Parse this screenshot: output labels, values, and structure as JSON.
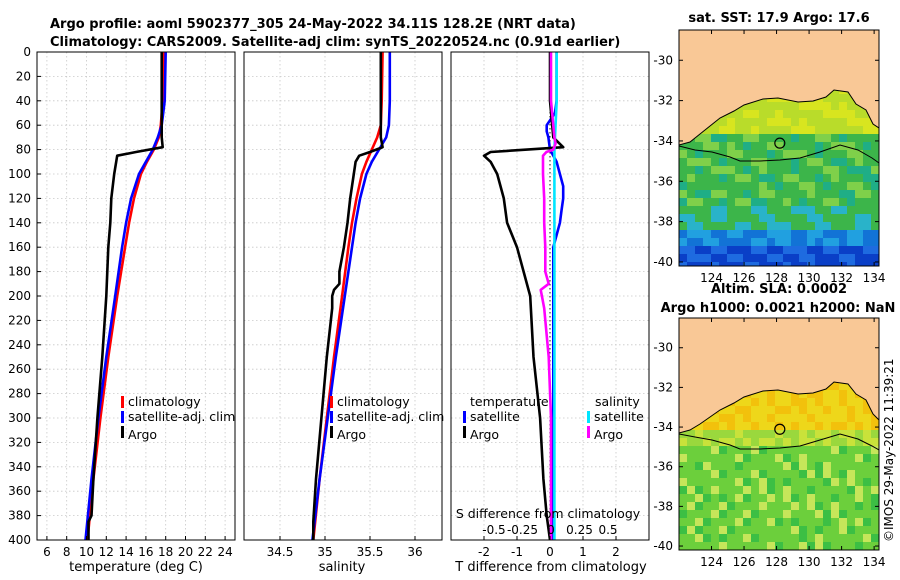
{
  "title_line1": "Argo profile: aoml 5902377_305 24-May-2022 34.11S 128.2E (NRT data)",
  "title_line2": "Climatology: CARS2009. Satellite-adj clim: synTS_20220524.nc (0.91d earlier)",
  "timestamp": "©IMOS 29-May-2022 11:39:21",
  "colors": {
    "climatology": "#ff0000",
    "satellite": "#0000ff",
    "argo": "#000000",
    "salinity_satellite": "#00e5ff",
    "salinity_argo": "#ff00ff",
    "land": "#f9c896"
  },
  "chart_data": [
    {
      "id": "temperature",
      "type": "line",
      "xlabel": "temperature (deg C)",
      "ylabel": "",
      "xlim": [
        5,
        25
      ],
      "ylim": [
        400,
        0
      ],
      "xticks": [
        6,
        8,
        10,
        12,
        14,
        16,
        18,
        20,
        22,
        24
      ],
      "yticks": [
        0,
        20,
        40,
        60,
        80,
        100,
        120,
        140,
        160,
        180,
        200,
        220,
        240,
        260,
        280,
        300,
        320,
        340,
        360,
        380,
        400
      ],
      "legend": [
        "climatology",
        "satellite-adj. clim",
        "Argo"
      ],
      "series": [
        {
          "name": "climatology",
          "depth": [
            0,
            40,
            60,
            70,
            80,
            90,
            100,
            120,
            140,
            160,
            200,
            250,
            300,
            350,
            400
          ],
          "values": [
            17.8,
            17.7,
            17.5,
            17.3,
            16.8,
            16.1,
            15.5,
            14.8,
            14.3,
            13.9,
            13.1,
            12.2,
            11.4,
            10.7,
            10.1
          ]
        },
        {
          "name": "satellite-adj. clim",
          "depth": [
            0,
            40,
            60,
            70,
            80,
            90,
            100,
            120,
            140,
            160,
            200,
            250,
            300,
            350,
            400
          ],
          "values": [
            18.0,
            17.9,
            17.6,
            17.2,
            16.7,
            16.0,
            15.3,
            14.5,
            14.0,
            13.6,
            12.9,
            12.0,
            11.2,
            10.5,
            9.9
          ]
        },
        {
          "name": "Argo",
          "depth": [
            0,
            40,
            70,
            78,
            82,
            85,
            90,
            100,
            120,
            140,
            160,
            200,
            250,
            300,
            350,
            380,
            385,
            400
          ],
          "values": [
            17.6,
            17.6,
            17.6,
            17.7,
            15.0,
            13.1,
            13.0,
            12.8,
            12.5,
            12.4,
            12.2,
            12.0,
            11.6,
            11.1,
            10.7,
            10.5,
            10.2,
            10.2
          ]
        }
      ]
    },
    {
      "id": "salinity",
      "type": "line",
      "xlabel": "salinity",
      "ylabel": "",
      "xlim": [
        34.1,
        36.3
      ],
      "ylim": [
        400,
        0
      ],
      "xticks": [
        34.5,
        35,
        35.5,
        36
      ],
      "xticklabels": [
        "34.5",
        "35",
        "35.5",
        "36"
      ],
      "legend": [
        "climatology",
        "satellite-adj. clim",
        "Argo"
      ],
      "series": [
        {
          "name": "climatology",
          "depth": [
            0,
            40,
            60,
            70,
            80,
            90,
            100,
            120,
            140,
            160,
            200,
            250,
            300,
            350,
            400
          ],
          "values": [
            35.64,
            35.63,
            35.62,
            35.58,
            35.52,
            35.46,
            35.41,
            35.35,
            35.3,
            35.26,
            35.19,
            35.1,
            35.02,
            34.94,
            34.87
          ]
        },
        {
          "name": "satellite-adj. clim",
          "depth": [
            0,
            40,
            60,
            70,
            80,
            90,
            100,
            120,
            140,
            160,
            200,
            250,
            300,
            350,
            400
          ],
          "values": [
            35.72,
            35.72,
            35.71,
            35.68,
            35.6,
            35.52,
            35.46,
            35.39,
            35.34,
            35.3,
            35.22,
            35.12,
            35.03,
            34.94,
            34.86
          ]
        },
        {
          "name": "Argo",
          "depth": [
            0,
            40,
            70,
            78,
            82,
            85,
            90,
            100,
            120,
            140,
            160,
            180,
            190,
            195,
            200,
            210,
            250,
            300,
            350,
            385,
            400
          ],
          "values": [
            35.62,
            35.62,
            35.62,
            35.64,
            35.5,
            35.38,
            35.34,
            35.32,
            35.28,
            35.25,
            35.21,
            35.16,
            35.16,
            35.1,
            35.08,
            35.08,
            35.02,
            34.96,
            34.9,
            34.87,
            34.87
          ]
        }
      ]
    },
    {
      "id": "differences",
      "type": "line",
      "xlabel": "T difference from climatology",
      "top_xlabel": "S difference from climatology",
      "xlim": [
        -3,
        3
      ],
      "ylim": [
        400,
        0
      ],
      "xticks": [
        -2,
        -1,
        0,
        1,
        2
      ],
      "top_xticks": [
        -0.5,
        -0.25,
        0,
        0.25,
        0.5
      ],
      "top_xticklabels": [
        "-0.5",
        "-0.25",
        "0",
        "0.25",
        "0.5"
      ],
      "legend_temperature_title": "temperature",
      "legend_salinity_title": "salinity",
      "legend_temperature": [
        "satellite",
        "Argo"
      ],
      "legend_salinity": [
        "satellite",
        "Argo"
      ],
      "series": [
        {
          "name": "T satellite",
          "depth": [
            0,
            20,
            40,
            50,
            60,
            65,
            70,
            80,
            90,
            100,
            110,
            120,
            130,
            140,
            150,
            160,
            200,
            250,
            300,
            350,
            400
          ],
          "values": [
            0.2,
            0.2,
            0.2,
            0.15,
            -0.1,
            -0.1,
            -0.05,
            0.0,
            0.2,
            0.3,
            0.4,
            0.4,
            0.35,
            0.3,
            0.2,
            0.1,
            0.1,
            0.1,
            0.1,
            0.1,
            0.1
          ]
        },
        {
          "name": "T Argo",
          "depth": [
            0,
            40,
            70,
            78,
            82,
            85,
            90,
            100,
            120,
            140,
            160,
            180,
            200,
            250,
            300,
            350,
            380,
            400
          ],
          "values": [
            0.0,
            0.0,
            0.1,
            0.4,
            -1.8,
            -2.0,
            -1.8,
            -1.6,
            -1.4,
            -1.3,
            -1.0,
            -0.8,
            -0.6,
            -0.5,
            -0.3,
            -0.2,
            -0.1,
            0.0
          ]
        },
        {
          "name": "S satellite",
          "depth": [
            0,
            40,
            80,
            120,
            200,
            300,
            400
          ],
          "values": [
            0.05,
            0.05,
            0.03,
            0.03,
            0.03,
            0.03,
            0.03
          ]
        },
        {
          "name": "S Argo",
          "depth": [
            0,
            40,
            70,
            75,
            80,
            82,
            85,
            90,
            100,
            120,
            140,
            160,
            180,
            190,
            195,
            200,
            210,
            250,
            300,
            350,
            400
          ],
          "values": [
            0.0,
            0.0,
            0.03,
            0.04,
            0.02,
            -0.04,
            -0.07,
            -0.07,
            -0.07,
            -0.06,
            -0.06,
            -0.05,
            -0.05,
            -0.02,
            -0.09,
            -0.08,
            -0.06,
            -0.02,
            0.0,
            0.0,
            0.0
          ]
        }
      ]
    },
    {
      "id": "sst_map",
      "type": "heatmap",
      "title": "sat. SST: 17.9 Argo: 17.6",
      "xlim": [
        122,
        134.3
      ],
      "ylim": [
        -40.2,
        -28.5
      ],
      "xticks": [
        124,
        126,
        128,
        130,
        132,
        134
      ],
      "yticks": [
        -30,
        -32,
        -34,
        -36,
        -38,
        -40
      ],
      "profile_location": [
        128.2,
        -34.11
      ]
    },
    {
      "id": "sla_map",
      "type": "heatmap",
      "title": "Altim. SLA: 0.0002",
      "subtitle": "Argo h1000: 0.0021 h2000: NaN",
      "xlim": [
        122,
        134.3
      ],
      "ylim": [
        -40.2,
        -28.5
      ],
      "xticks": [
        124,
        126,
        128,
        130,
        132,
        134
      ],
      "yticks": [
        -30,
        -32,
        -34,
        -36,
        -38,
        -40
      ],
      "profile_location": [
        128.2,
        -34.11
      ]
    }
  ]
}
